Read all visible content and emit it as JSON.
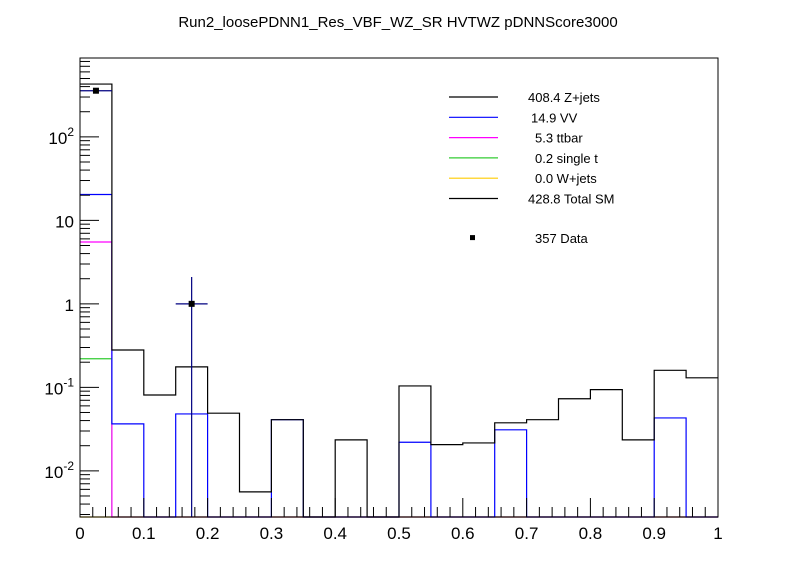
{
  "chart_data": {
    "type": "bar",
    "title": "Run2_loosePDNN1_Res_VBF_WZ_SR HVTWZ  pDNNScore3000",
    "xlabel": "",
    "ylabel": "",
    "xlim": [
      0,
      1
    ],
    "ylim": [
      0.0028,
      880
    ],
    "yscale": "log",
    "bin_edges": [
      0,
      0.05,
      0.1,
      0.15,
      0.2,
      0.25,
      0.3,
      0.35,
      0.4,
      0.45,
      0.5,
      0.55,
      0.6,
      0.65,
      0.7,
      0.75,
      0.8,
      0.85,
      0.9,
      0.95,
      1.0
    ],
    "x_tick_labels": [
      "0",
      "0.1",
      "0.2",
      "0.3",
      "0.4",
      "0.5",
      "0.6",
      "0.7",
      "0.8",
      "0.9",
      "1"
    ],
    "y_tick_labels": [
      {
        "value": 0.01,
        "base": "10",
        "exp": "-2"
      },
      {
        "value": 0.1,
        "base": "10",
        "exp": "-1"
      },
      {
        "value": 1,
        "base": "1",
        "exp": ""
      },
      {
        "value": 10,
        "base": "10",
        "exp": ""
      },
      {
        "value": 100,
        "base": "10",
        "exp": "2"
      }
    ],
    "stacked": true,
    "series": [
      {
        "name": "Z+jets",
        "legend": "408.4 Z+jets",
        "color": "#000000",
        "stack_top": [
          428.8,
          0.28,
          0.081,
          0.176,
          0.049,
          0.0056,
          0.041,
          0,
          0.0235,
          0,
          0.104,
          0.0206,
          0.0216,
          0.0376,
          0.041,
          0.073,
          0.094,
          0.0235,
          0.16,
          0.13
        ]
      },
      {
        "name": "VV",
        "legend": "14.9 VV",
        "color": "#0000ff",
        "stack_top": [
          20.4,
          0.0365,
          0,
          0.048,
          0,
          0,
          0.041,
          0,
          0,
          0,
          0.022,
          0,
          0,
          0.031,
          0,
          0,
          0,
          0,
          0.043,
          0
        ]
      },
      {
        "name": "ttbar",
        "legend": "5.3 ttbar",
        "color": "#ff00ff",
        "stack_top": [
          5.5,
          0,
          0,
          0,
          0,
          0,
          0,
          0,
          0,
          0,
          0,
          0,
          0,
          0,
          0,
          0,
          0,
          0,
          0,
          0
        ]
      },
      {
        "name": "single t",
        "legend": "0.2 single t",
        "color": "#33cc33",
        "stack_top": [
          0.22,
          0,
          0,
          0,
          0,
          0,
          0,
          0,
          0,
          0,
          0,
          0,
          0,
          0,
          0,
          0,
          0,
          0,
          0,
          0
        ]
      },
      {
        "name": "W+jets",
        "legend": "0.0 W+jets",
        "color": "#ffcc00",
        "stack_top": [
          0,
          0,
          0,
          0,
          0,
          0,
          0,
          0,
          0,
          0,
          0,
          0,
          0,
          0,
          0,
          0,
          0,
          0,
          0,
          0
        ]
      }
    ],
    "total": {
      "legend": "428.8 Total SM",
      "color": "#000000"
    },
    "data": {
      "legend": "357 Data",
      "color": "#000000",
      "error_color": "#000080",
      "points": [
        {
          "x": 0.025,
          "y": 357,
          "err_low": 18.9,
          "err_high": 19.9
        },
        {
          "x": 0.175,
          "y": 1,
          "err_low": 1,
          "err_high": 1.1
        }
      ]
    },
    "legend_position": "top-right",
    "grid": false
  }
}
